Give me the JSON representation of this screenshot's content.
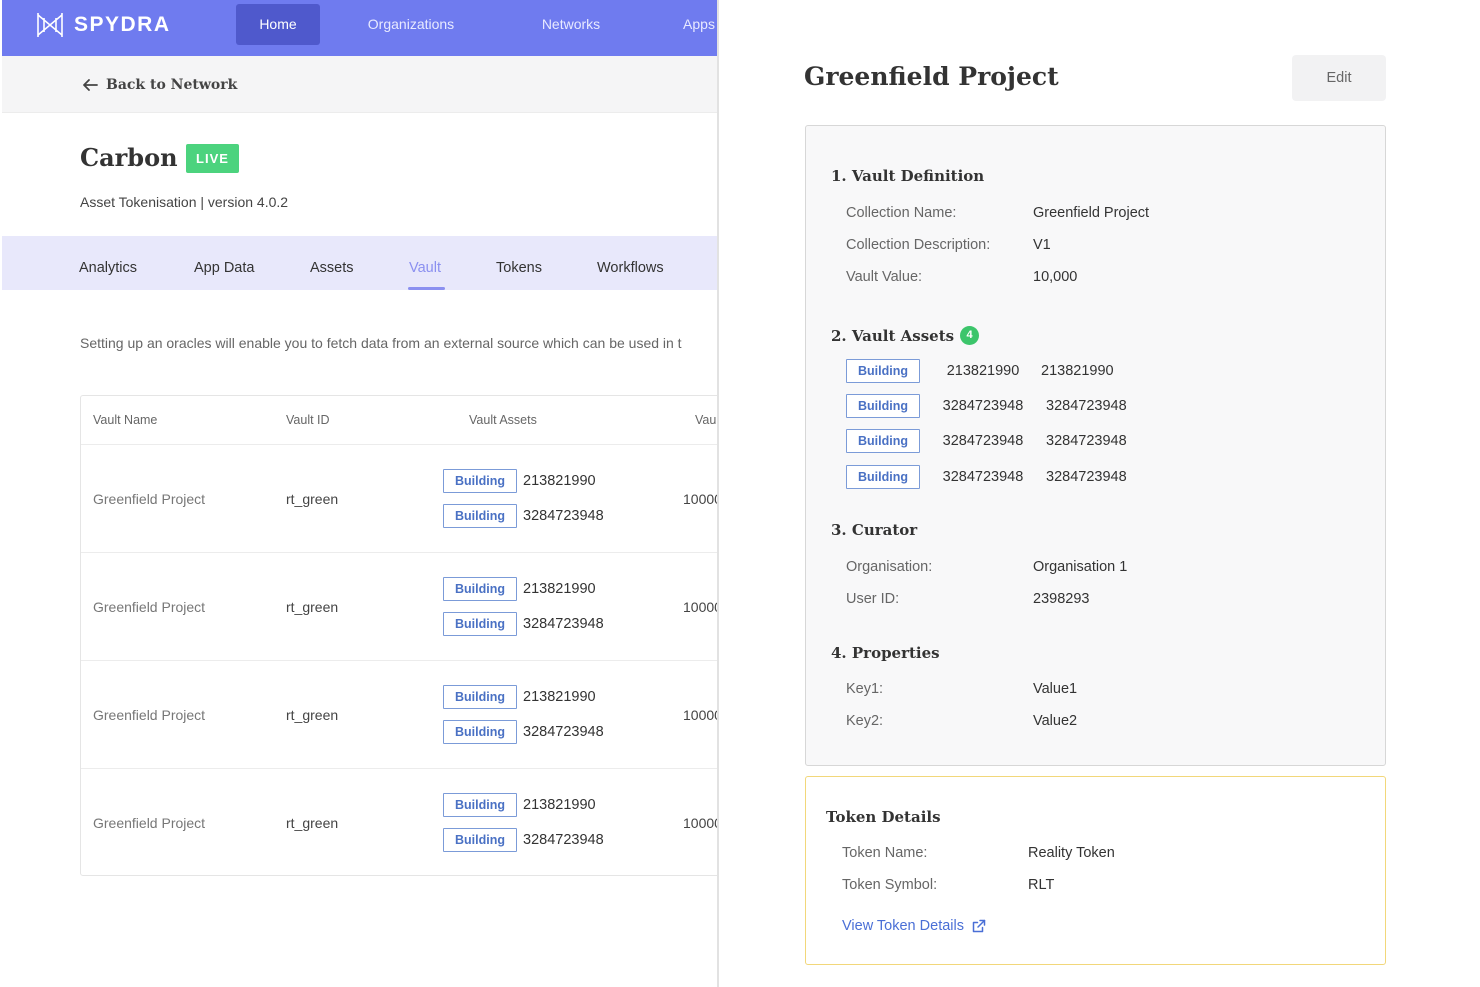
{
  "brand": {
    "name": "SPYDRA"
  },
  "nav": [
    {
      "label": "Home",
      "active": true
    },
    {
      "label": "Organizations",
      "active": false
    },
    {
      "label": "Networks",
      "active": false
    },
    {
      "label": "Apps",
      "active": false
    }
  ],
  "back_link": "Back to Network",
  "network": {
    "title": "Carbon",
    "status": "LIVE",
    "subtitle": "Asset Tokenisation | version 4.0.2"
  },
  "tabs": [
    {
      "label": "Analytics",
      "active": false
    },
    {
      "label": "App Data",
      "active": false
    },
    {
      "label": "Assets",
      "active": false
    },
    {
      "label": "Vault",
      "active": true
    },
    {
      "label": "Tokens",
      "active": false
    },
    {
      "label": "Workflows",
      "active": false
    }
  ],
  "info_text": "Setting up an oracles will enable you to fetch data from an external source which can be used in t",
  "table": {
    "headers": [
      "Vault Name",
      "Vault ID",
      "Vault Assets",
      "Vau"
    ],
    "rows": [
      {
        "name": "Greenfield Project",
        "id": "rt_green",
        "assets": [
          {
            "tag": "Building",
            "value": "213821990"
          },
          {
            "tag": "Building",
            "value": "3284723948"
          }
        ],
        "value": "10000"
      },
      {
        "name": "Greenfield Project",
        "id": "rt_green",
        "assets": [
          {
            "tag": "Building",
            "value": "213821990"
          },
          {
            "tag": "Building",
            "value": "3284723948"
          }
        ],
        "value": "10000"
      },
      {
        "name": "Greenfield Project",
        "id": "rt_green",
        "assets": [
          {
            "tag": "Building",
            "value": "213821990"
          },
          {
            "tag": "Building",
            "value": "3284723948"
          }
        ],
        "value": "10000"
      },
      {
        "name": "Greenfield Project",
        "id": "rt_green",
        "assets": [
          {
            "tag": "Building",
            "value": "213821990"
          },
          {
            "tag": "Building",
            "value": "3284723948"
          }
        ],
        "value": "10000"
      }
    ]
  },
  "detail": {
    "title": "Greenfield Project",
    "edit_label": "Edit",
    "sections": {
      "definition": {
        "title": "1. Vault Definition",
        "fields": [
          {
            "key": "Collection Name:",
            "value": "Greenfield Project"
          },
          {
            "key": "Collection Description:",
            "value": "V1"
          },
          {
            "key": "Vault Value:",
            "value": "10,000"
          }
        ]
      },
      "assets": {
        "title": "2. Vault Assets",
        "count": "4",
        "items": [
          {
            "tag": "Building",
            "a": "213821990",
            "b": "213821990"
          },
          {
            "tag": "Building",
            "a": "3284723948",
            "b": "3284723948"
          },
          {
            "tag": "Building",
            "a": "3284723948",
            "b": "3284723948"
          },
          {
            "tag": "Building",
            "a": "3284723948",
            "b": "3284723948"
          }
        ]
      },
      "curator": {
        "title": "3. Curator",
        "fields": [
          {
            "key": "Organisation:",
            "value": "Organisation 1"
          },
          {
            "key": "User ID:",
            "value": "2398293"
          }
        ]
      },
      "properties": {
        "title": "4. Properties",
        "fields": [
          {
            "key": "Key1:",
            "value": "Value1"
          },
          {
            "key": "Key2:",
            "value": "Value2"
          }
        ]
      }
    },
    "token": {
      "title": "Token Details",
      "fields": [
        {
          "key": "Token Name:",
          "value": "Reality Token"
        },
        {
          "key": "Token Symbol:",
          "value": "RLT"
        }
      ],
      "link_label": "View Token Details"
    }
  },
  "colors": {
    "nav_bg": "#6f7bef",
    "nav_active": "#4f59cc",
    "live_badge": "#4cd37e",
    "tab_active": "#8b90f0",
    "chip_border": "#7b9bd8",
    "token_card_border": "#f2d77a",
    "link": "#4a6fd6"
  },
  "icons": [
    "spydra-logo-icon",
    "arrow-left-icon",
    "external-link-icon"
  ]
}
